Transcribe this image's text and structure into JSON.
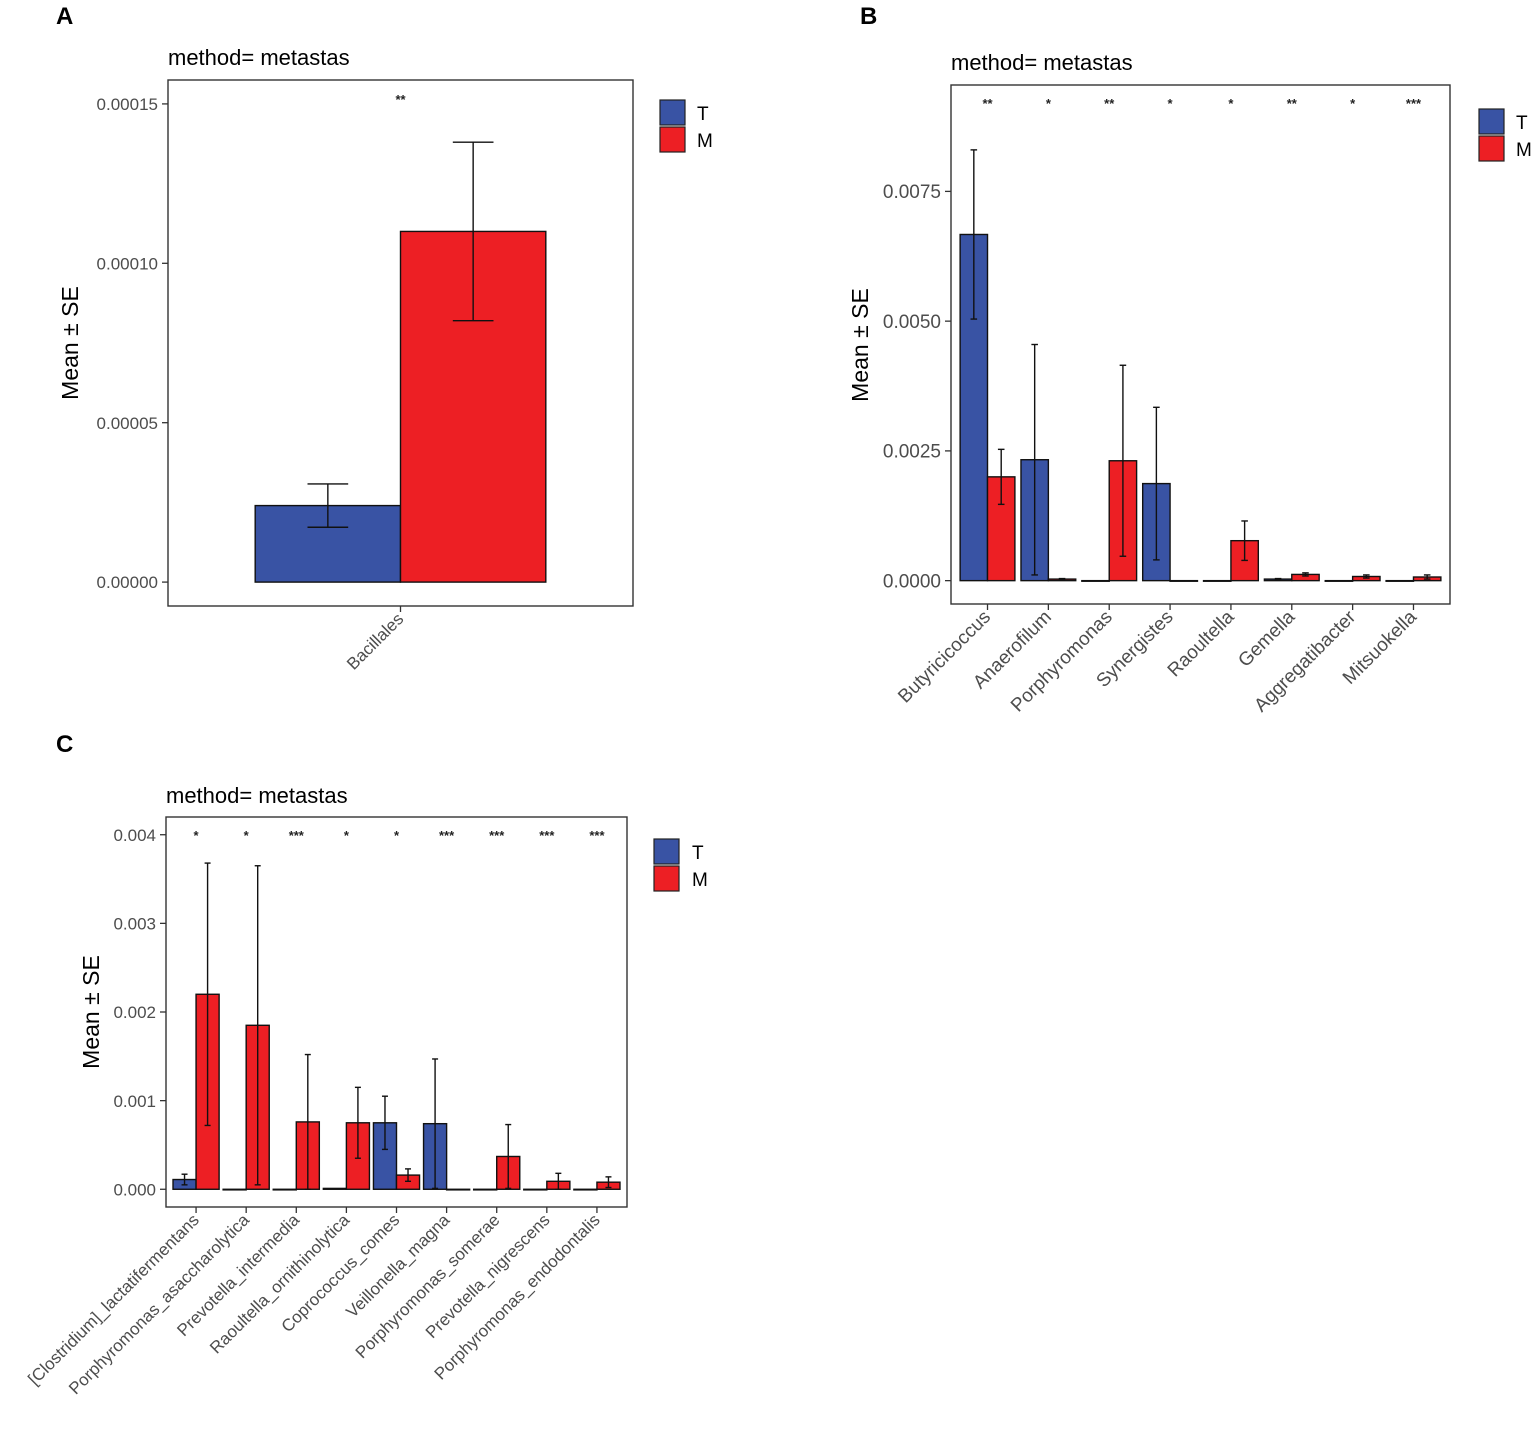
{
  "colors": {
    "T": "#3953a4",
    "M": "#ed1f24",
    "axis": "#333333",
    "text": "#4d4d4d"
  },
  "y_axis_label": "Mean ± SE",
  "chart_data": [
    {
      "panel": "A",
      "type": "bar",
      "title": "method= metastas",
      "ylabel": "Mean ± SE",
      "xlabel": "",
      "ylim": [
        -7.5e-06,
        0.0001575
      ],
      "yticks": [
        0,
        5e-05,
        0.0001,
        0.00015
      ],
      "ytick_labels": [
        "0.00000",
        "0.00005",
        "0.00010",
        "0.00015"
      ],
      "categories": [
        "Bacillales"
      ],
      "significance": [
        "**"
      ],
      "legend": [
        "T",
        "M"
      ],
      "legend_position": "right",
      "grid": false,
      "series": [
        {
          "name": "T",
          "values": [
            2.4e-05
          ],
          "se": [
            6.8e-06
          ]
        },
        {
          "name": "M",
          "values": [
            0.00011
          ],
          "se": [
            2.8e-05
          ]
        }
      ]
    },
    {
      "panel": "B",
      "type": "bar",
      "title": "method= metastas",
      "ylabel": "Mean ± SE",
      "xlabel": "",
      "ylim": [
        -0.00045,
        0.00955
      ],
      "yticks": [
        0,
        0.0025,
        0.005,
        0.0075
      ],
      "ytick_labels": [
        "0.0000",
        "0.0025",
        "0.0050",
        "0.0075"
      ],
      "categories": [
        "Butyricicoccus",
        "Anaerofilum",
        "Porphyromonas",
        "Synergistes",
        "Raoultella",
        "Gemella",
        "Aggregatibacter",
        "Mitsuokella"
      ],
      "significance": [
        "**",
        "*",
        "**",
        "*",
        "*",
        "**",
        "*",
        "***"
      ],
      "legend": [
        "T",
        "M"
      ],
      "legend_position": "right",
      "grid": false,
      "series": [
        {
          "name": "T",
          "values": [
            0.00667,
            0.00233,
            0.0,
            0.00187,
            0.0,
            3e-05,
            0.0,
            0.0
          ],
          "se": [
            0.00163,
            0.00222,
            0.0,
            0.00147,
            0.0,
            1e-05,
            0.0,
            0.0
          ]
        },
        {
          "name": "M",
          "values": [
            0.002,
            3e-05,
            0.00231,
            0.0,
            0.00077,
            0.00012,
            8e-05,
            7e-05
          ],
          "se": [
            0.00053,
            1e-05,
            0.00184,
            0.0,
            0.00038,
            3e-05,
            3e-05,
            4e-05
          ]
        }
      ]
    },
    {
      "panel": "C",
      "type": "bar",
      "title": "method= metastas",
      "ylabel": "Mean ± SE",
      "xlabel": "",
      "ylim": [
        -0.0002,
        0.0042
      ],
      "yticks": [
        0,
        0.001,
        0.002,
        0.003,
        0.004
      ],
      "ytick_labels": [
        "0.000",
        "0.001",
        "0.002",
        "0.003",
        "0.004"
      ],
      "categories": [
        "[Clostridium]_lactatifermentans",
        "Porphyromonas_asaccharolytica",
        "Prevotella_intermedia",
        "Raoultella_ornithinolytica",
        "Coprococcus_comes",
        "Veillonella_magna",
        "Porphyromonas_somerae",
        "Prevotella_nigrescens",
        "Porphyromonas_endodontalis"
      ],
      "significance": [
        "*",
        "*",
        "***",
        "*",
        "*",
        "***",
        "***",
        "***",
        "***"
      ],
      "legend": [
        "T",
        "M"
      ],
      "legend_position": "right",
      "grid": false,
      "series": [
        {
          "name": "T",
          "values": [
            0.00011,
            0.0,
            0.0,
            1e-05,
            0.00075,
            0.00074,
            0.0,
            0.0,
            0.0
          ],
          "se": [
            6e-05,
            0.0,
            0.0,
            0.0,
            0.0003,
            0.00073,
            0.0,
            0.0,
            0.0
          ]
        },
        {
          "name": "M",
          "values": [
            0.0022,
            0.00185,
            0.00076,
            0.00075,
            0.00016,
            0.0,
            0.00037,
            9e-05,
            8e-05
          ],
          "se": [
            0.00148,
            0.0018,
            0.00076,
            0.0004,
            7e-05,
            0.0,
            0.00036,
            9e-05,
            6e-05
          ]
        }
      ]
    }
  ],
  "panels": [
    {
      "letter": "A",
      "legend_T": "T",
      "legend_M": "M"
    },
    {
      "letter": "B",
      "legend_T": "T",
      "legend_M": "M"
    },
    {
      "letter": "C",
      "legend_T": "T",
      "legend_M": "M"
    }
  ]
}
